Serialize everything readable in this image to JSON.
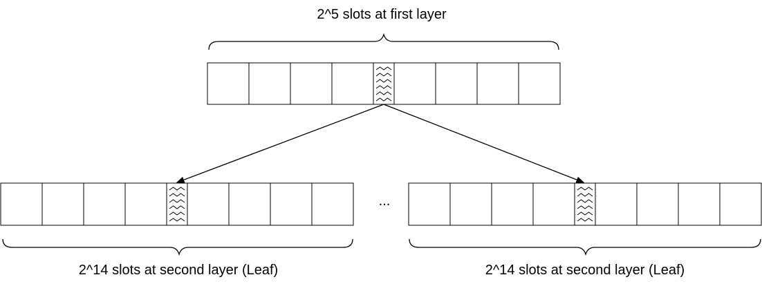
{
  "diagram": {
    "top": {
      "label": "2^5 slots at first layer",
      "slot_count": 9,
      "highlighted_slot": 4
    },
    "leaves": [
      {
        "label": "2^14 slots at second layer (Leaf)",
        "slot_count": 9,
        "highlighted_slot": 4
      },
      {
        "label": "2^14 slots at second layer (Leaf)",
        "slot_count": 9,
        "highlighted_slot": 4
      }
    ],
    "ellipsis": "...",
    "colors": {
      "stroke": "#000000",
      "fill": "#ffffff"
    }
  }
}
